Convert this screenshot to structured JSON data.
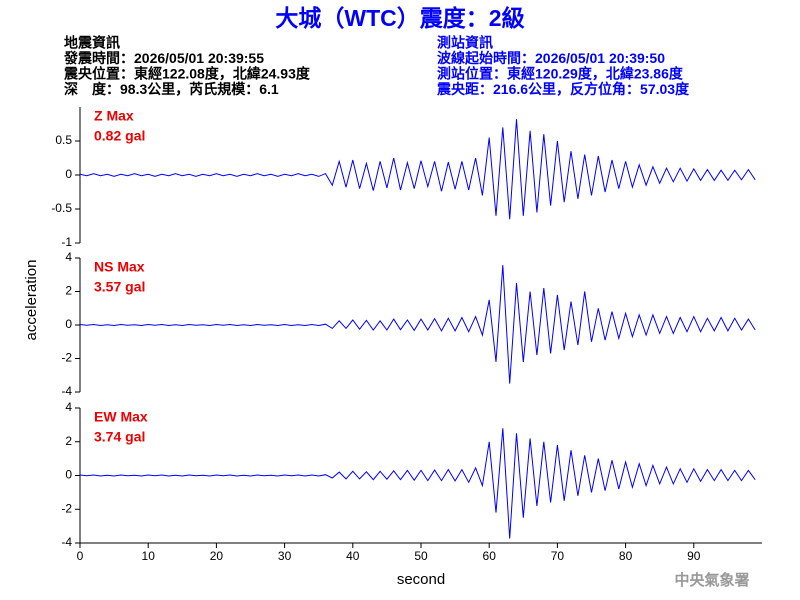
{
  "header": {
    "title": "大城（WTC）震度：2級",
    "left": [
      "地震資訊",
      "發震時間：2026/05/01 20:39:55",
      "震央位置：東經122.08度，北緯24.93度",
      "深　度：98.3公里，芮氏規模：6.1"
    ],
    "right": [
      "測站資訊",
      "波線起始時間：2026/05/01 20:39:50",
      "測站位置：東經120.29度，北緯23.86度",
      "震央距：216.6公里，反方位角：57.03度"
    ]
  },
  "footer": "中央氣象署",
  "chart_data": [
    {
      "type": "line",
      "annotations": [
        "Z Max",
        "0.82 gal"
      ],
      "xlim": [
        0,
        100
      ],
      "ylim": [
        -1,
        1
      ],
      "yticks": [
        -1,
        -0.5,
        0,
        0.5
      ],
      "x": [
        0,
        1,
        2,
        3,
        4,
        5,
        6,
        7,
        8,
        9,
        10,
        11,
        12,
        13,
        14,
        15,
        16,
        17,
        18,
        19,
        20,
        21,
        22,
        23,
        24,
        25,
        26,
        27,
        28,
        29,
        30,
        31,
        32,
        33,
        34,
        35,
        36,
        37,
        38,
        39,
        40,
        41,
        42,
        43,
        44,
        45,
        46,
        47,
        48,
        49,
        50,
        51,
        52,
        53,
        54,
        55,
        56,
        57,
        58,
        59,
        60,
        61,
        62,
        63,
        64,
        65,
        66,
        67,
        68,
        69,
        70,
        71,
        72,
        73,
        74,
        75,
        76,
        77,
        78,
        79,
        80,
        81,
        82,
        83,
        84,
        85,
        86,
        87,
        88,
        89,
        90,
        91,
        92,
        93,
        94,
        95,
        96,
        97,
        98,
        99
      ],
      "series": [
        {
          "color": "#0000ff",
          "values": [
            0.01,
            -0.01,
            0.02,
            -0.01,
            0.01,
            -0.02,
            0.01,
            -0.01,
            0.02,
            -0.01,
            0.01,
            -0.02,
            0.01,
            -0.01,
            0.02,
            -0.01,
            0.01,
            -0.02,
            0.01,
            -0.01,
            0.02,
            -0.01,
            0.01,
            -0.02,
            0.01,
            -0.01,
            0.02,
            -0.01,
            0.01,
            -0.02,
            0.01,
            -0.01,
            0.02,
            -0.01,
            0.01,
            -0.02,
            0.02,
            -0.15,
            0.2,
            -0.18,
            0.22,
            -0.2,
            0.17,
            -0.23,
            0.2,
            -0.19,
            0.25,
            -0.22,
            0.18,
            -0.2,
            0.21,
            -0.17,
            0.2,
            -0.24,
            0.19,
            -0.21,
            0.2,
            -0.22,
            0.25,
            -0.3,
            0.55,
            -0.6,
            0.7,
            -0.65,
            0.82,
            -0.6,
            0.65,
            -0.55,
            0.6,
            -0.45,
            0.5,
            -0.4,
            0.35,
            -0.35,
            0.3,
            -0.3,
            0.28,
            -0.25,
            0.22,
            -0.2,
            0.2,
            -0.18,
            0.15,
            -0.15,
            0.12,
            -0.12,
            0.1,
            -0.1,
            0.1,
            -0.09,
            0.09,
            -0.08,
            0.08,
            -0.08,
            0.07,
            -0.08,
            0.07,
            -0.07,
            0.08,
            -0.07
          ]
        }
      ]
    },
    {
      "type": "line",
      "annotations": [
        "NS Max",
        "3.57 gal"
      ],
      "ylabel": "acceleration",
      "xlim": [
        0,
        100
      ],
      "ylim": [
        -4,
        4
      ],
      "yticks": [
        -4,
        -2,
        0,
        2,
        4
      ],
      "x": [
        0,
        1,
        2,
        3,
        4,
        5,
        6,
        7,
        8,
        9,
        10,
        11,
        12,
        13,
        14,
        15,
        16,
        17,
        18,
        19,
        20,
        21,
        22,
        23,
        24,
        25,
        26,
        27,
        28,
        29,
        30,
        31,
        32,
        33,
        34,
        35,
        36,
        37,
        38,
        39,
        40,
        41,
        42,
        43,
        44,
        45,
        46,
        47,
        48,
        49,
        50,
        51,
        52,
        53,
        54,
        55,
        56,
        57,
        58,
        59,
        60,
        61,
        62,
        63,
        64,
        65,
        66,
        67,
        68,
        69,
        70,
        71,
        72,
        73,
        74,
        75,
        76,
        77,
        78,
        79,
        80,
        81,
        82,
        83,
        84,
        85,
        86,
        87,
        88,
        89,
        90,
        91,
        92,
        93,
        94,
        95,
        96,
        97,
        98,
        99
      ],
      "series": [
        {
          "color": "#0000ff",
          "values": [
            0.03,
            -0.02,
            0.03,
            -0.03,
            0.02,
            -0.03,
            0.03,
            -0.02,
            0.02,
            -0.03,
            0.03,
            -0.02,
            0.03,
            -0.03,
            0.02,
            -0.03,
            0.03,
            -0.02,
            0.02,
            -0.03,
            0.03,
            -0.02,
            0.03,
            -0.03,
            0.02,
            -0.03,
            0.03,
            -0.02,
            0.02,
            -0.03,
            0.03,
            -0.03,
            0.02,
            -0.03,
            0.03,
            -0.03,
            0.05,
            -0.2,
            0.25,
            -0.2,
            0.3,
            -0.25,
            0.28,
            -0.3,
            0.25,
            -0.3,
            0.35,
            -0.28,
            0.3,
            -0.32,
            0.35,
            -0.3,
            0.38,
            -0.35,
            0.4,
            -0.35,
            0.45,
            -0.4,
            0.5,
            -0.6,
            1.5,
            -2.2,
            3.57,
            -3.5,
            2.5,
            -2.2,
            2.0,
            -1.8,
            2.2,
            -1.7,
            1.8,
            -1.5,
            1.4,
            -1.2,
            2.0,
            -1.0,
            1.0,
            -0.9,
            0.8,
            -0.8,
            0.7,
            -0.7,
            0.6,
            -0.6,
            0.6,
            -0.5,
            0.5,
            -0.5,
            0.45,
            -0.4,
            0.5,
            -0.4,
            0.4,
            -0.35,
            0.45,
            -0.35,
            0.4,
            -0.3,
            0.35,
            -0.3
          ]
        }
      ]
    },
    {
      "type": "line",
      "annotations": [
        "EW Max",
        "3.74 gal"
      ],
      "xlabel": "second",
      "xlim": [
        0,
        100
      ],
      "xticks": [
        0,
        10,
        20,
        30,
        40,
        50,
        60,
        70,
        80,
        90
      ],
      "ylim": [
        -4,
        4
      ],
      "yticks": [
        -4,
        -2,
        0,
        2,
        4
      ],
      "x": [
        0,
        1,
        2,
        3,
        4,
        5,
        6,
        7,
        8,
        9,
        10,
        11,
        12,
        13,
        14,
        15,
        16,
        17,
        18,
        19,
        20,
        21,
        22,
        23,
        24,
        25,
        26,
        27,
        28,
        29,
        30,
        31,
        32,
        33,
        34,
        35,
        36,
        37,
        38,
        39,
        40,
        41,
        42,
        43,
        44,
        45,
        46,
        47,
        48,
        49,
        50,
        51,
        52,
        53,
        54,
        55,
        56,
        57,
        58,
        59,
        60,
        61,
        62,
        63,
        64,
        65,
        66,
        67,
        68,
        69,
        70,
        71,
        72,
        73,
        74,
        75,
        76,
        77,
        78,
        79,
        80,
        81,
        82,
        83,
        84,
        85,
        86,
        87,
        88,
        89,
        90,
        91,
        92,
        93,
        94,
        95,
        96,
        97,
        98,
        99
      ],
      "series": [
        {
          "color": "#0000ff",
          "values": [
            0.03,
            -0.02,
            0.03,
            -0.03,
            0.02,
            -0.03,
            0.03,
            -0.02,
            0.02,
            -0.03,
            0.03,
            -0.02,
            0.03,
            -0.03,
            0.02,
            -0.03,
            0.03,
            -0.02,
            0.02,
            -0.03,
            0.03,
            -0.02,
            0.03,
            -0.03,
            0.02,
            -0.03,
            0.03,
            -0.02,
            0.02,
            -0.03,
            0.03,
            -0.02,
            0.03,
            -0.03,
            0.03,
            -0.03,
            0.05,
            -0.15,
            0.2,
            -0.2,
            0.25,
            -0.2,
            0.22,
            -0.25,
            0.25,
            -0.22,
            0.28,
            -0.25,
            0.3,
            -0.28,
            0.3,
            -0.3,
            0.32,
            -0.3,
            0.35,
            -0.32,
            0.35,
            -0.4,
            0.45,
            -0.6,
            2.0,
            -2.2,
            2.8,
            -3.74,
            2.5,
            -2.5,
            2.2,
            -1.8,
            2.0,
            -1.6,
            1.8,
            -1.5,
            1.5,
            -1.2,
            1.2,
            -1.0,
            1.0,
            -0.9,
            0.9,
            -0.8,
            0.8,
            -0.7,
            0.7,
            -0.6,
            0.6,
            -0.5,
            0.5,
            -0.5,
            0.4,
            -0.4,
            0.4,
            -0.35,
            0.35,
            -0.3,
            0.35,
            -0.3,
            0.3,
            -0.3,
            0.3,
            -0.25
          ]
        }
      ]
    }
  ]
}
